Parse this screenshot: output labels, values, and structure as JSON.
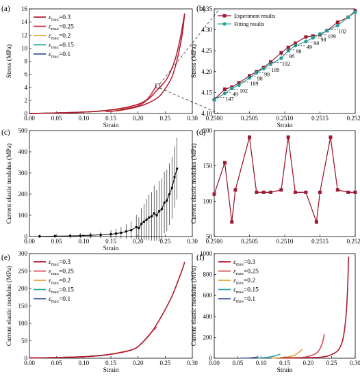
{
  "chart_data": [
    {
      "panel": "(a)",
      "type": "line",
      "xlabel": "Strain",
      "ylabel": "Stress (MPa)",
      "xlim": [
        0.0,
        0.32
      ],
      "ylim": [
        0,
        16
      ],
      "xticks": [
        "0.00",
        "0.05",
        "0.10",
        "0.15",
        "0.20",
        "0.25",
        "0.30"
      ],
      "yticks": [
        "0",
        "2",
        "4",
        "6",
        "8",
        "10",
        "12",
        "14",
        "16"
      ],
      "legend_position": "top-left",
      "series": [
        {
          "legend_sym": "ε",
          "legend_sub": "max",
          "legend_val": "=0.3",
          "color": "#b0192f",
          "loading": [
            [
              0.0,
              0
            ],
            [
              0.05,
              0.08
            ],
            [
              0.1,
              0.2
            ],
            [
              0.15,
              0.45
            ],
            [
              0.2,
              1.1
            ],
            [
              0.23,
              2.0
            ],
            [
              0.25,
              3.5
            ],
            [
              0.27,
              5.3
            ],
            [
              0.285,
              8.0
            ],
            [
              0.295,
              11.0
            ],
            [
              0.305,
              15.3
            ]
          ],
          "unloading": [
            [
              0.305,
              15.3
            ],
            [
              0.3,
              12.0
            ],
            [
              0.29,
              8.2
            ],
            [
              0.28,
              5.6
            ],
            [
              0.265,
              3.6
            ],
            [
              0.25,
              2.3
            ],
            [
              0.22,
              1.2
            ],
            [
              0.18,
              0.5
            ],
            [
              0.15,
              0.3
            ]
          ]
        },
        {
          "legend_sym": "ε",
          "legend_sub": "max",
          "legend_val": "=0.25",
          "color": "#c2344a",
          "loading": [
            [
              0.0,
              0
            ],
            [
              0.05,
              0.08
            ],
            [
              0.1,
              0.2
            ],
            [
              0.15,
              0.45
            ],
            [
              0.2,
              1.1
            ],
            [
              0.23,
              2.1
            ],
            [
              0.25,
              4.3
            ]
          ],
          "unloading": [
            [
              0.25,
              4.3
            ],
            [
              0.23,
              2.0
            ],
            [
              0.21,
              1.1
            ],
            [
              0.18,
              0.55
            ]
          ]
        },
        {
          "legend_sym": "ε",
          "legend_sub": "max",
          "legend_val": "=0.2",
          "color": "#e8a23c",
          "loading": [
            [
              0.0,
              0
            ],
            [
              0.1,
              0.2
            ],
            [
              0.15,
              0.45
            ],
            [
              0.2,
              1.0
            ]
          ],
          "unloading": [
            [
              0.2,
              1.0
            ],
            [
              0.17,
              0.5
            ]
          ]
        },
        {
          "legend_sym": "ε",
          "legend_sub": "max",
          "legend_val": "=0.15",
          "color": "#2aa7a0",
          "loading": [
            [
              0.0,
              0
            ],
            [
              0.1,
              0.2
            ],
            [
              0.15,
              0.45
            ]
          ],
          "unloading": [
            [
              0.15,
              0.45
            ],
            [
              0.13,
              0.3
            ]
          ]
        },
        {
          "legend_sym": "ε",
          "legend_sub": "max",
          "legend_val": "=0.1",
          "color": "#3a5aa0",
          "loading": [
            [
              0.0,
              0
            ],
            [
              0.05,
              0.08
            ],
            [
              0.1,
              0.2
            ]
          ],
          "unloading": [
            [
              0.1,
              0.2
            ],
            [
              0.09,
              0.15
            ]
          ]
        }
      ]
    },
    {
      "panel": "(b)",
      "type": "line",
      "xlabel": "Strain",
      "ylabel": "Stress (MPa)",
      "xlim": [
        0.25,
        0.252
      ],
      "ylim": [
        4.1,
        4.35
      ],
      "xticks": [
        "0.2500",
        "0.2505",
        "0.2510",
        "0.2515",
        "0.2520"
      ],
      "yticks": [
        "4.10",
        "4.15",
        "4.20",
        "4.25",
        "4.30",
        "4.35"
      ],
      "legend_position": "top-left",
      "series": [
        {
          "name": "Experiment results",
          "color": "#9b1b30",
          "marker": "square",
          "x": [
            0.25,
            0.25015,
            0.25025,
            0.25035,
            0.2505,
            0.2506,
            0.2507,
            0.2508,
            0.25095,
            0.25105,
            0.25115,
            0.2513,
            0.2514,
            0.2515,
            0.2516,
            0.25175,
            0.2519,
            0.252
          ],
          "y": [
            4.133,
            4.158,
            4.163,
            4.173,
            4.19,
            4.2,
            4.21,
            4.223,
            4.245,
            4.258,
            4.268,
            4.283,
            4.285,
            4.288,
            4.298,
            4.318,
            4.33,
            4.345
          ]
        },
        {
          "name": "Fitting results",
          "color": "#2aa7a0",
          "marker": "circle",
          "x": [
            0.25,
            0.25015,
            0.25025,
            0.25035,
            0.2505,
            0.2506,
            0.2507,
            0.2508,
            0.25095,
            0.25105,
            0.25115,
            0.2513,
            0.2514,
            0.2515,
            0.2516,
            0.25175,
            0.2519,
            0.252
          ],
          "y": [
            4.133,
            4.148,
            4.16,
            4.168,
            4.185,
            4.197,
            4.207,
            4.218,
            4.232,
            4.25,
            4.262,
            4.272,
            4.281,
            4.29,
            4.298,
            4.31,
            4.33,
            4.342
          ]
        }
      ],
      "annotations": [
        "147",
        "49",
        "102",
        "189",
        "98",
        "98",
        "189",
        "102",
        "98",
        "98",
        "49",
        "98",
        "98",
        "189",
        "102"
      ]
    },
    {
      "panel": "(c)",
      "type": "scatter",
      "xlabel": "Strain",
      "ylabel": "Current elastic modulus (MPa)",
      "xlim": [
        0.0,
        0.32
      ],
      "ylim": [
        0,
        500
      ],
      "xticks": [
        "0.00",
        "0.05",
        "0.10",
        "0.15",
        "0.20",
        "0.25",
        "0.30"
      ],
      "yticks": [
        "0",
        "100",
        "200",
        "300",
        "400",
        "500"
      ],
      "series": [
        {
          "color": "#000000",
          "x": [
            0.02,
            0.05,
            0.08,
            0.1,
            0.12,
            0.14,
            0.16,
            0.17,
            0.18,
            0.19,
            0.2,
            0.21,
            0.215,
            0.22,
            0.225,
            0.23,
            0.235,
            0.24,
            0.245,
            0.25,
            0.255,
            0.26,
            0.265,
            0.27,
            0.275,
            0.28,
            0.285,
            0.29
          ],
          "y": [
            1,
            2,
            3,
            4,
            6,
            8,
            11,
            14,
            18,
            24,
            30,
            45,
            40,
            60,
            70,
            80,
            90,
            95,
            110,
            100,
            120,
            130,
            160,
            170,
            200,
            230,
            280,
            320
          ]
        }
      ]
    },
    {
      "panel": "(d)",
      "type": "line",
      "xlabel": "",
      "ylabel": "Current elastic modulus (MPa)",
      "xlim": [
        0.25,
        0.252
      ],
      "ylim": [
        25,
        200
      ],
      "xticks": [
        "0.2500",
        "0.2505",
        "0.2510",
        "0.2515",
        "0.2520"
      ],
      "yticks": [
        "50",
        "100",
        "150",
        "200"
      ],
      "series": [
        {
          "color": "#9b1b30",
          "marker": "square",
          "x": [
            0.25,
            0.25015,
            0.25025,
            0.2503,
            0.2505,
            0.2506,
            0.2507,
            0.2508,
            0.25095,
            0.25105,
            0.25115,
            0.2513,
            0.25145,
            0.2515,
            0.25165,
            0.25175,
            0.2519,
            0.252
          ],
          "y": [
            95,
            147,
            49,
            102,
            189,
            98,
            98,
            98,
            102,
            189,
            98,
            98,
            49,
            98,
            189,
            102,
            98,
            98
          ]
        }
      ]
    },
    {
      "panel": "(e)",
      "type": "line",
      "xlabel": "Strain",
      "ylabel": "Current elastic modulus (MPa)",
      "xlim": [
        0.0,
        0.32
      ],
      "ylim": [
        0,
        320
      ],
      "xticks": [
        "0.00",
        "0.05",
        "0.10",
        "0.15",
        "0.20",
        "0.25",
        "0.30"
      ],
      "yticks": [
        "0",
        "50",
        "100",
        "150",
        "200",
        "250",
        "300"
      ],
      "legend_position": "top-left",
      "series": [
        {
          "legend_sym": "ε",
          "legend_sub": "max",
          "legend_val": "=0.3",
          "color": "#b0192f",
          "x": [
            0.0,
            0.05,
            0.1,
            0.15,
            0.2,
            0.22,
            0.24,
            0.26,
            0.28,
            0.3,
            0.305
          ],
          "y": [
            1,
            2,
            4,
            10,
            25,
            45,
            80,
            130,
            190,
            270,
            295
          ]
        },
        {
          "legend_sym": "ε",
          "legend_sub": "max",
          "legend_val": "=0.25",
          "color": "#d9484f",
          "x": [
            0.0,
            0.05,
            0.1,
            0.15,
            0.2,
            0.22,
            0.24,
            0.25
          ],
          "y": [
            1,
            2,
            4,
            10,
            25,
            45,
            80,
            95
          ]
        },
        {
          "legend_sym": "ε",
          "legend_sub": "max",
          "legend_val": "=0.2",
          "color": "#e8a23c",
          "x": [
            0.0,
            0.05,
            0.1,
            0.15,
            0.2
          ],
          "y": [
            1,
            2,
            4,
            10,
            25
          ]
        },
        {
          "legend_sym": "ε",
          "legend_sub": "max",
          "legend_val": "=0.15",
          "color": "#2aa7a0",
          "x": [
            0.0,
            0.05,
            0.1,
            0.15
          ],
          "y": [
            1,
            2,
            4,
            10
          ]
        },
        {
          "legend_sym": "ε",
          "legend_sub": "max",
          "legend_val": "=0.1",
          "color": "#3a5aa0",
          "x": [
            0.0,
            0.05,
            0.1
          ],
          "y": [
            1,
            2,
            4
          ]
        }
      ]
    },
    {
      "panel": "(f)",
      "type": "line",
      "xlabel": "Strain",
      "ylabel": "Current elastic modulus (MPa)",
      "xlim": [
        0.0,
        0.32
      ],
      "ylim": [
        0,
        1000
      ],
      "xticks": [
        "0.00",
        "0.05",
        "0.10",
        "0.15",
        "0.20",
        "0.25",
        "0.30"
      ],
      "yticks": [
        "0",
        "200",
        "400",
        "600",
        "800",
        "1000"
      ],
      "legend_position": "top-left",
      "series": [
        {
          "legend_sym": "ε",
          "legend_sub": "max",
          "legend_val": "=0.3",
          "color": "#b0192f",
          "x": [
            0.15,
            0.2,
            0.24,
            0.26,
            0.28,
            0.29,
            0.295,
            0.3,
            0.303,
            0.305
          ],
          "y": [
            2,
            4,
            10,
            25,
            70,
            150,
            250,
            450,
            700,
            970
          ]
        },
        {
          "legend_sym": "ε",
          "legend_sub": "max",
          "legend_val": "=0.25",
          "color": "#d9484f",
          "x": [
            0.15,
            0.2,
            0.22,
            0.235,
            0.245,
            0.25
          ],
          "y": [
            2,
            8,
            25,
            60,
            140,
            230
          ]
        },
        {
          "legend_sym": "ε",
          "legend_sub": "max",
          "legend_val": "=0.2",
          "color": "#e8a23c",
          "x": [
            0.13,
            0.16,
            0.18,
            0.19,
            0.2
          ],
          "y": [
            2,
            8,
            25,
            50,
            85
          ]
        },
        {
          "legend_sym": "ε",
          "legend_sub": "max",
          "legend_val": "=0.15",
          "color": "#2aa7a0",
          "x": [
            0.1,
            0.12,
            0.14,
            0.15
          ],
          "y": [
            2,
            8,
            25,
            40
          ]
        },
        {
          "legend_sym": "ε",
          "legend_sub": "max",
          "legend_val": "=0.1",
          "color": "#3a5aa0",
          "x": [
            0.06,
            0.08,
            0.095,
            0.1
          ],
          "y": [
            1,
            3,
            10,
            15
          ]
        }
      ]
    }
  ]
}
